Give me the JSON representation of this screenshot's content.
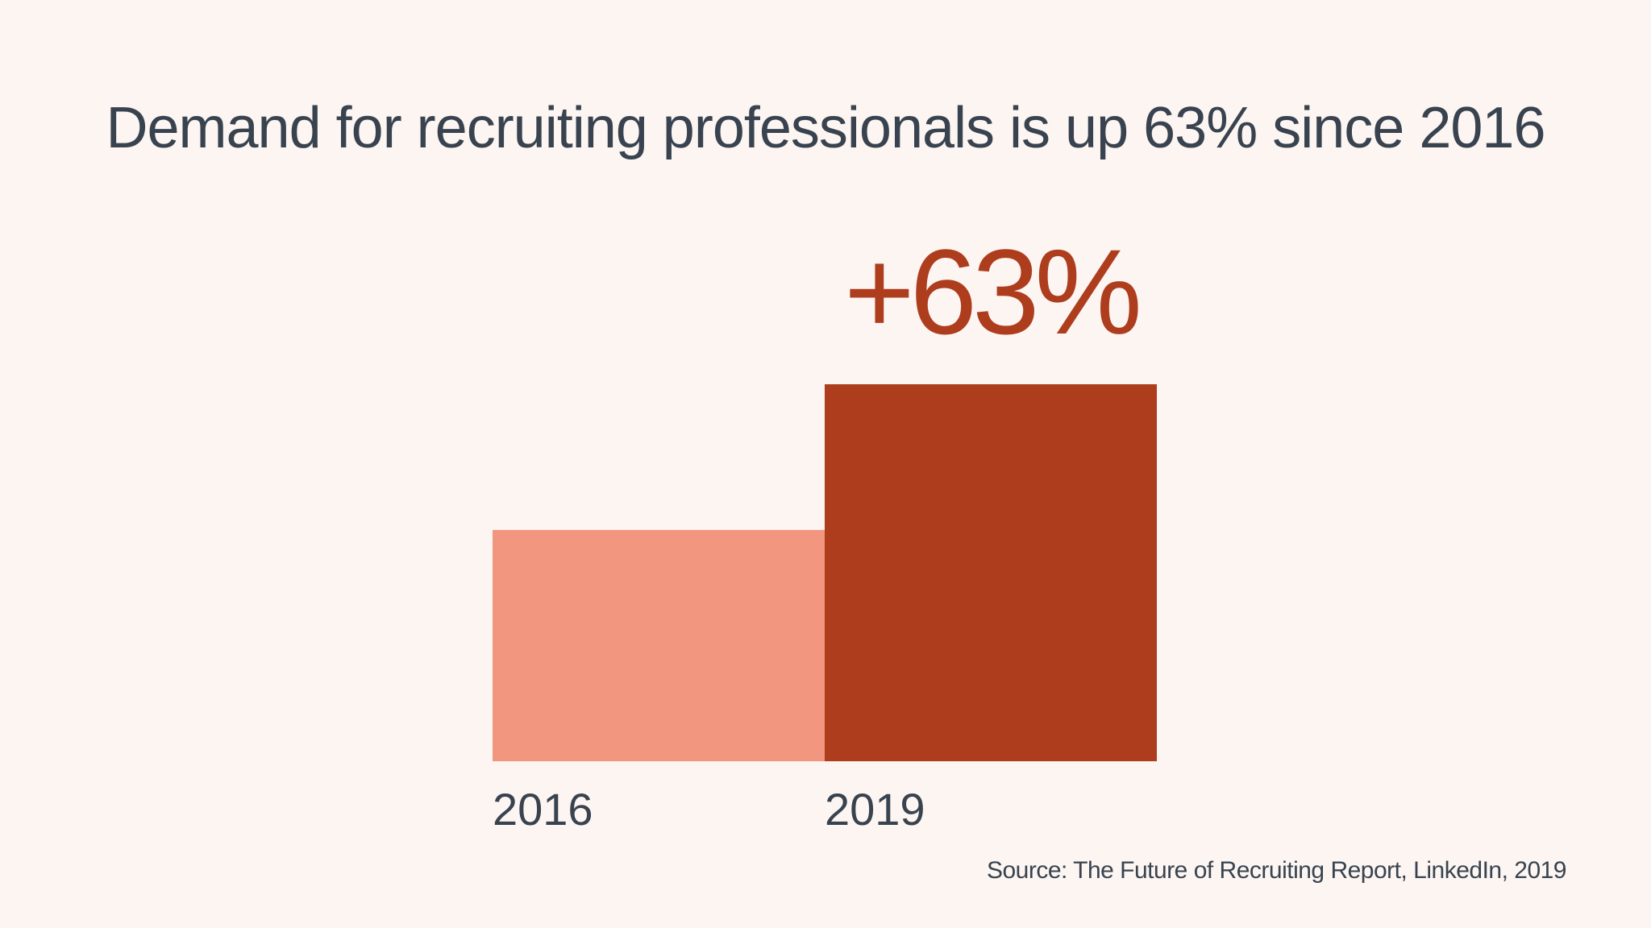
{
  "title": "Demand for recruiting professionals is up 63% since 2016",
  "source": "Source: The Future of Recruiting Report, LinkedIn, 2019",
  "colors": {
    "background": "#fcf5f2",
    "text": "#38434f",
    "bar_2016": "#f2967f",
    "bar_2019": "#ae3d1e",
    "accent": "#ae3d1e"
  },
  "chart_data": {
    "type": "bar",
    "title": "Demand for recruiting professionals is up 63% since 2016",
    "categories": [
      "2016",
      "2019"
    ],
    "values": [
      100,
      163
    ],
    "annotation": "+63%",
    "xlabel": "",
    "ylabel": "",
    "ylim": [
      0,
      163
    ],
    "grid": false,
    "legend": "none"
  }
}
